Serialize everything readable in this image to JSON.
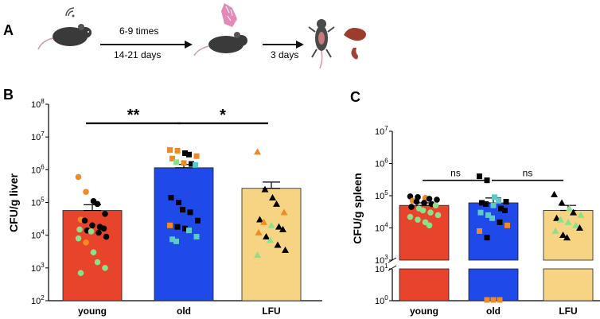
{
  "panels": {
    "a": "A",
    "b": "B",
    "c": "C"
  },
  "schematic": {
    "step1_top": "6-9 times",
    "step1_bottom": "14-21 days",
    "step2_bottom": "3 days",
    "icons": [
      "mouse-with-ultrasound-icon",
      "mouse-icon",
      "bacteria-icon",
      "dissected-mouse-icon",
      "liver-icon",
      "spleen-icon"
    ]
  },
  "colors": {
    "young": "#e8432b",
    "old": "#1f49e8",
    "lfu": "#f7d483",
    "orange": "#f08a24",
    "green": "#8de08a",
    "black": "#000000",
    "teal": "#5dc9c9"
  },
  "chart_data": [
    {
      "type": "bar",
      "title": "",
      "ylabel": "CFU/g liver",
      "yscale": "log",
      "ylim": [
        100,
        100000000
      ],
      "yticks": [
        {
          "base": "10",
          "exp": "2"
        },
        {
          "base": "10",
          "exp": "3"
        },
        {
          "base": "10",
          "exp": "4"
        },
        {
          "base": "10",
          "exp": "5"
        },
        {
          "base": "10",
          "exp": "6"
        },
        {
          "base": "10",
          "exp": "7"
        },
        {
          "base": "10",
          "exp": "8"
        }
      ],
      "categories": [
        "young",
        "old",
        "LFU"
      ],
      "values": [
        57000,
        1150000,
        270000
      ],
      "sem_upper": [
        85000,
        1450000,
        420000
      ],
      "significance": [
        {
          "from": 0,
          "to": 1,
          "label": "**",
          "y": 25000000
        },
        {
          "from": 1,
          "to": 2,
          "label": "*",
          "y": 25000000
        }
      ],
      "points": [
        [
          {
            "v": 600000,
            "c": "orange"
          },
          {
            "v": 210000,
            "c": "orange"
          },
          {
            "v": 110000,
            "c": "black"
          },
          {
            "v": 90000,
            "c": "black"
          },
          {
            "v": 45000,
            "c": "black"
          },
          {
            "v": 30000,
            "c": "orange"
          },
          {
            "v": 28000,
            "c": "black"
          },
          {
            "v": 20000,
            "c": "black"
          },
          {
            "v": 18000,
            "c": "black"
          },
          {
            "v": 16000,
            "c": "black"
          },
          {
            "v": 15000,
            "c": "green"
          },
          {
            "v": 14000,
            "c": "black"
          },
          {
            "v": 13000,
            "c": "green"
          },
          {
            "v": 12000,
            "c": "black"
          },
          {
            "v": 9000,
            "c": "black"
          },
          {
            "v": 8000,
            "c": "green"
          },
          {
            "v": 6000,
            "c": "orange"
          },
          {
            "v": 3000,
            "c": "green"
          },
          {
            "v": 1500,
            "c": "green"
          },
          {
            "v": 1000,
            "c": "green"
          },
          {
            "v": 700,
            "c": "green"
          }
        ],
        [
          {
            "v": 4000000,
            "c": "orange"
          },
          {
            "v": 3800000,
            "c": "orange"
          },
          {
            "v": 3200000,
            "c": "black"
          },
          {
            "v": 2900000,
            "c": "black"
          },
          {
            "v": 2600000,
            "c": "orange"
          },
          {
            "v": 2200000,
            "c": "orange"
          },
          {
            "v": 1700000,
            "c": "green"
          },
          {
            "v": 1600000,
            "c": "orange"
          },
          {
            "v": 1500000,
            "c": "black"
          },
          {
            "v": 1400000,
            "c": "teal"
          },
          {
            "v": 140000,
            "c": "black"
          },
          {
            "v": 100000,
            "c": "black"
          },
          {
            "v": 60000,
            "c": "black"
          },
          {
            "v": 50000,
            "c": "black"
          },
          {
            "v": 28000,
            "c": "black"
          },
          {
            "v": 20000,
            "c": "orange"
          },
          {
            "v": 18000,
            "c": "black"
          },
          {
            "v": 16000,
            "c": "black"
          },
          {
            "v": 14000,
            "c": "teal"
          },
          {
            "v": 9000,
            "c": "teal"
          },
          {
            "v": 7500,
            "c": "teal"
          },
          {
            "v": 6500,
            "c": "teal"
          }
        ],
        [
          {
            "v": 3500000,
            "c": "orange"
          },
          {
            "v": 250000,
            "c": "black"
          },
          {
            "v": 140000,
            "c": "black"
          },
          {
            "v": 90000,
            "c": "black"
          },
          {
            "v": 50000,
            "c": "orange"
          },
          {
            "v": 30000,
            "c": "black"
          },
          {
            "v": 25000,
            "c": "orange"
          },
          {
            "v": 20000,
            "c": "green"
          },
          {
            "v": 18000,
            "c": "black"
          },
          {
            "v": 15000,
            "c": "black"
          },
          {
            "v": 12000,
            "c": "orange"
          },
          {
            "v": 9000,
            "c": "black"
          },
          {
            "v": 7000,
            "c": "green"
          },
          {
            "v": 5000,
            "c": "black"
          },
          {
            "v": 3500,
            "c": "black"
          },
          {
            "v": 2500,
            "c": "green"
          }
        ]
      ]
    },
    {
      "type": "bar",
      "title": "",
      "ylabel": "CFU/g spleen",
      "yscale": "log-broken",
      "ylim": [
        1,
        10000000
      ],
      "axis_break": [
        10,
        1000
      ],
      "yticks": [
        {
          "base": "10",
          "exp": "0",
          "v": 1
        },
        {
          "base": "10",
          "exp": "1",
          "v": 10
        },
        {
          "base": "10",
          "exp": "3",
          "v": 1000
        },
        {
          "base": "10",
          "exp": "4",
          "v": 10000
        },
        {
          "base": "10",
          "exp": "5",
          "v": 100000
        },
        {
          "base": "10",
          "exp": "6",
          "v": 1000000
        },
        {
          "base": "10",
          "exp": "7",
          "v": 10000000
        }
      ],
      "categories": [
        "young",
        "old",
        "LFU"
      ],
      "values": [
        50000,
        60000,
        35000
      ],
      "sem_upper": [
        60000,
        85000,
        50000
      ],
      "significance": [
        {
          "from": 0,
          "to": 1,
          "label": "ns",
          "y": 300000
        },
        {
          "from": 1,
          "to": 2,
          "label": "ns",
          "y": 300000
        }
      ],
      "points": [
        [
          {
            "v": 95000,
            "c": "black"
          },
          {
            "v": 90000,
            "c": "black"
          },
          {
            "v": 85000,
            "c": "orange"
          },
          {
            "v": 80000,
            "c": "black"
          },
          {
            "v": 75000,
            "c": "black"
          },
          {
            "v": 70000,
            "c": "orange"
          },
          {
            "v": 65000,
            "c": "black"
          },
          {
            "v": 60000,
            "c": "black"
          },
          {
            "v": 55000,
            "c": "black"
          },
          {
            "v": 50000,
            "c": "green"
          },
          {
            "v": 45000,
            "c": "black"
          },
          {
            "v": 40000,
            "c": "green"
          },
          {
            "v": 35000,
            "c": "green"
          },
          {
            "v": 30000,
            "c": "green"
          },
          {
            "v": 25000,
            "c": "green"
          },
          {
            "v": 22000,
            "c": "green"
          },
          {
            "v": 18000,
            "c": "green"
          },
          {
            "v": 15000,
            "c": "green"
          },
          {
            "v": 12000,
            "c": "green"
          }
        ],
        [
          {
            "v": 400000,
            "c": "black"
          },
          {
            "v": 300000,
            "c": "black"
          },
          {
            "v": 90000,
            "c": "teal"
          },
          {
            "v": 70000,
            "c": "teal"
          },
          {
            "v": 65000,
            "c": "black"
          },
          {
            "v": 60000,
            "c": "black"
          },
          {
            "v": 55000,
            "c": "black"
          },
          {
            "v": 50000,
            "c": "teal"
          },
          {
            "v": 40000,
            "c": "black"
          },
          {
            "v": 35000,
            "c": "black"
          },
          {
            "v": 30000,
            "c": "teal"
          },
          {
            "v": 25000,
            "c": "teal"
          },
          {
            "v": 20000,
            "c": "teal"
          },
          {
            "v": 15000,
            "c": "black"
          },
          {
            "v": 12000,
            "c": "orange"
          },
          {
            "v": 8000,
            "c": "orange"
          },
          {
            "v": 5000,
            "c": "black"
          },
          {
            "v": 1,
            "c": "orange"
          },
          {
            "v": 1,
            "c": "orange"
          },
          {
            "v": 1,
            "c": "orange"
          }
        ],
        [
          {
            "v": 110000,
            "c": "black"
          },
          {
            "v": 60000,
            "c": "black"
          },
          {
            "v": 40000,
            "c": "green"
          },
          {
            "v": 30000,
            "c": "black"
          },
          {
            "v": 25000,
            "c": "green"
          },
          {
            "v": 20000,
            "c": "black"
          },
          {
            "v": 18000,
            "c": "green"
          },
          {
            "v": 15000,
            "c": "green"
          },
          {
            "v": 12000,
            "c": "green"
          },
          {
            "v": 10000,
            "c": "black"
          },
          {
            "v": 8000,
            "c": "green"
          },
          {
            "v": 6000,
            "c": "black"
          },
          {
            "v": 5000,
            "c": "black"
          }
        ]
      ]
    }
  ]
}
